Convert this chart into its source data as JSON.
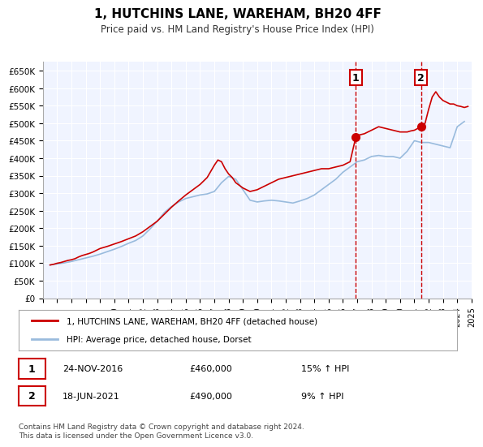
{
  "title": "1, HUTCHINS LANE, WAREHAM, BH20 4FF",
  "subtitle": "Price paid vs. HM Land Registry's House Price Index (HPI)",
  "legend_label_red": "1, HUTCHINS LANE, WAREHAM, BH20 4FF (detached house)",
  "legend_label_blue": "HPI: Average price, detached house, Dorset",
  "marker1_date": 2016.9,
  "marker1_value": 460000,
  "marker1_label": "1",
  "marker1_text": "24-NOV-2016",
  "marker1_price": "£460,000",
  "marker1_hpi": "15% ↑ HPI",
  "marker2_date": 2021.46,
  "marker2_value": 490000,
  "marker2_label": "2",
  "marker2_text": "18-JUN-2021",
  "marker2_price": "£490,000",
  "marker2_hpi": "9% ↑ HPI",
  "ylim": [
    0,
    675000
  ],
  "xlim_start": 1995,
  "xlim_end": 2025,
  "yticks": [
    0,
    50000,
    100000,
    150000,
    200000,
    250000,
    300000,
    350000,
    400000,
    450000,
    500000,
    550000,
    600000,
    650000
  ],
  "ytick_labels": [
    "£0",
    "£50K",
    "£100K",
    "£150K",
    "£200K",
    "£250K",
    "£300K",
    "£350K",
    "£400K",
    "£450K",
    "£500K",
    "£550K",
    "£600K",
    "£650K"
  ],
  "xticks": [
    1995,
    1996,
    1997,
    1998,
    1999,
    2000,
    2001,
    2002,
    2003,
    2004,
    2005,
    2006,
    2007,
    2008,
    2009,
    2010,
    2011,
    2012,
    2013,
    2014,
    2015,
    2016,
    2017,
    2018,
    2019,
    2020,
    2021,
    2022,
    2023,
    2024,
    2025
  ],
  "red_color": "#cc0000",
  "blue_color": "#99bbdd",
  "bg_color": "#f0f4ff",
  "plot_bg": "#f0f4ff",
  "footer": "Contains HM Land Registry data © Crown copyright and database right 2024.\nThis data is licensed under the Open Government Licence v3.0.",
  "red_x": [
    1995.5,
    1995.75,
    1996.0,
    1996.25,
    1996.5,
    1996.75,
    1997.0,
    1997.25,
    1997.5,
    1997.75,
    1998.0,
    1998.25,
    1998.5,
    1998.75,
    1999.0,
    1999.5,
    2000.0,
    2000.5,
    2001.0,
    2001.5,
    2002.0,
    2002.5,
    2003.0,
    2003.5,
    2004.0,
    2004.5,
    2005.0,
    2005.5,
    2006.0,
    2006.5,
    2007.0,
    2007.25,
    2007.5,
    2007.75,
    2008.0,
    2008.25,
    2008.5,
    2009.0,
    2009.5,
    2010.0,
    2010.5,
    2011.0,
    2011.5,
    2012.0,
    2012.5,
    2013.0,
    2013.5,
    2014.0,
    2014.5,
    2015.0,
    2015.5,
    2016.0,
    2016.5,
    2016.9,
    2017.0,
    2017.5,
    2018.0,
    2018.5,
    2019.0,
    2019.5,
    2020.0,
    2020.5,
    2020.75,
    2021.0,
    2021.46,
    2021.75,
    2022.0,
    2022.25,
    2022.5,
    2022.75,
    2023.0,
    2023.25,
    2023.5,
    2023.75,
    2024.0,
    2024.25,
    2024.5,
    2024.75
  ],
  "red_y": [
    95000,
    97000,
    100000,
    102000,
    105000,
    108000,
    110000,
    113000,
    118000,
    122000,
    125000,
    128000,
    132000,
    137000,
    142000,
    148000,
    155000,
    162000,
    170000,
    178000,
    190000,
    205000,
    220000,
    240000,
    260000,
    278000,
    295000,
    310000,
    325000,
    345000,
    380000,
    395000,
    390000,
    370000,
    355000,
    345000,
    330000,
    315000,
    305000,
    310000,
    320000,
    330000,
    340000,
    345000,
    350000,
    355000,
    360000,
    365000,
    370000,
    370000,
    375000,
    380000,
    390000,
    460000,
    465000,
    470000,
    480000,
    490000,
    485000,
    480000,
    475000,
    475000,
    478000,
    480000,
    490000,
    500000,
    540000,
    575000,
    590000,
    575000,
    565000,
    560000,
    555000,
    555000,
    550000,
    548000,
    545000,
    548000
  ],
  "blue_x": [
    1995.5,
    1996.0,
    1996.5,
    1997.0,
    1997.5,
    1998.0,
    1998.5,
    1999.0,
    1999.5,
    2000.0,
    2000.5,
    2001.0,
    2001.5,
    2002.0,
    2002.5,
    2003.0,
    2003.5,
    2004.0,
    2004.5,
    2005.0,
    2005.5,
    2006.0,
    2006.5,
    2007.0,
    2007.5,
    2008.0,
    2008.5,
    2009.0,
    2009.5,
    2010.0,
    2010.5,
    2011.0,
    2011.5,
    2012.0,
    2012.5,
    2013.0,
    2013.5,
    2014.0,
    2014.5,
    2015.0,
    2015.5,
    2016.0,
    2016.5,
    2017.0,
    2017.5,
    2018.0,
    2018.5,
    2019.0,
    2019.5,
    2020.0,
    2020.5,
    2021.0,
    2021.5,
    2022.0,
    2022.5,
    2023.0,
    2023.5,
    2024.0,
    2024.5
  ],
  "blue_y": [
    95000,
    98000,
    101000,
    105000,
    110000,
    115000,
    120000,
    126000,
    133000,
    140000,
    148000,
    157000,
    165000,
    178000,
    198000,
    220000,
    245000,
    262000,
    275000,
    285000,
    290000,
    295000,
    298000,
    305000,
    330000,
    348000,
    340000,
    310000,
    280000,
    275000,
    278000,
    280000,
    278000,
    275000,
    272000,
    278000,
    285000,
    295000,
    310000,
    325000,
    340000,
    360000,
    375000,
    390000,
    395000,
    405000,
    408000,
    405000,
    405000,
    400000,
    420000,
    450000,
    445000,
    445000,
    440000,
    435000,
    430000,
    490000,
    505000
  ]
}
